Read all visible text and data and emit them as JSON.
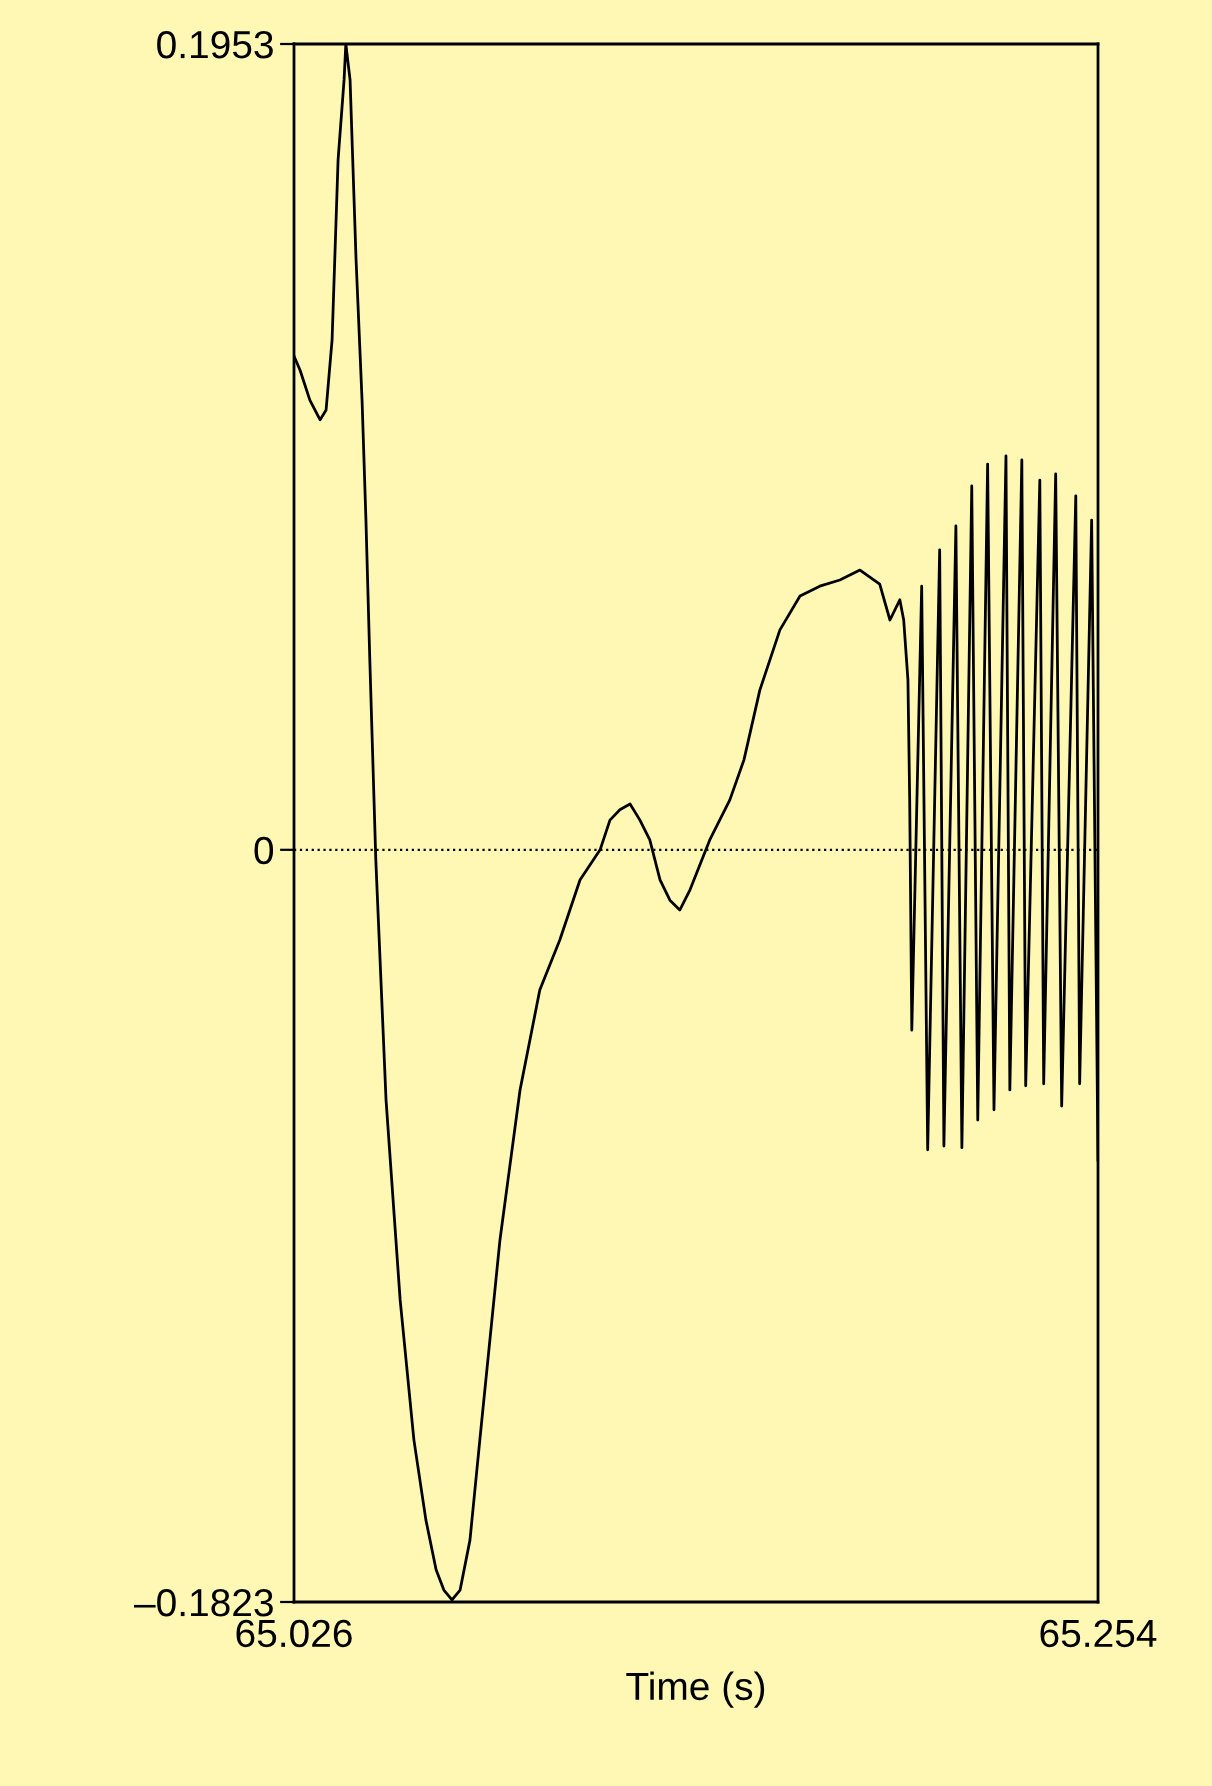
{
  "chart_data": {
    "type": "line",
    "xlabel": "Time (s)",
    "xlim": [
      65.026,
      65.254
    ],
    "ylim": [
      -0.1823,
      0.1953
    ],
    "xticks": [
      65.026,
      65.254
    ],
    "yticks": [
      {
        "value": -0.1823,
        "label": "–0.1823"
      },
      0,
      0.1953
    ],
    "grid": false,
    "legend": false,
    "marker": "none",
    "line_style": "solid",
    "ref_lines": [
      {
        "axis": "y",
        "value": 0,
        "line_style": "dotted",
        "color": "#000000"
      }
    ],
    "series": [
      {
        "color": "#000000",
        "x": [
          65.026,
          65.0277,
          65.0305,
          65.0334,
          65.0351,
          65.0368,
          65.0385,
          65.0402,
          65.0407,
          65.0419,
          65.0436,
          65.0453,
          65.0464,
          65.0475,
          65.0492,
          65.0521,
          65.0561,
          65.06,
          65.0634,
          65.0663,
          65.0685,
          65.0708,
          65.0731,
          65.0759,
          65.0787,
          65.0844,
          65.0901,
          65.0957,
          65.1014,
          65.1071,
          65.1128,
          65.1156,
          65.1184,
          65.1213,
          65.1241,
          65.1269,
          65.1298,
          65.1326,
          65.1354,
          65.1383,
          65.1439,
          65.1496,
          65.1536,
          65.1581,
          65.1638,
          65.1695,
          65.1751,
          65.1808,
          65.1865,
          65.1921,
          65.195,
          65.1978,
          65.1989,
          65.2001,
          65.2006,
          65.2012,
          65.204,
          65.2057,
          65.2091,
          65.2103,
          65.2137,
          65.2154,
          65.2182,
          65.2199,
          65.2227,
          65.2245,
          65.2279,
          65.229,
          65.2324,
          65.2335,
          65.2375,
          65.2386,
          65.242,
          65.2437,
          65.2477,
          65.2488,
          65.2522,
          65.254
        ],
        "values": [
          0.1197,
          0.1163,
          0.109,
          0.1042,
          0.1066,
          0.1236,
          0.1672,
          0.1866,
          0.1953,
          0.1866,
          0.143,
          0.109,
          0.0799,
          0.046,
          -0.0025,
          -0.0606,
          -0.1091,
          -0.143,
          -0.1624,
          -0.1745,
          -0.1794,
          -0.1818,
          -0.1794,
          -0.1673,
          -0.143,
          -0.0946,
          -0.0582,
          -0.034,
          -0.0218,
          -0.0073,
          0.0,
          0.0072,
          0.0097,
          0.0111,
          0.0072,
          0.0024,
          -0.0073,
          -0.0122,
          -0.0146,
          -0.0097,
          0.0024,
          0.0121,
          0.0218,
          0.0387,
          0.0533,
          0.0615,
          0.0639,
          0.0654,
          0.0678,
          0.0644,
          0.0557,
          0.0606,
          0.0557,
          0.0412,
          0.0121,
          -0.0437,
          0.0639,
          -0.0727,
          0.0727,
          -0.0718,
          0.0785,
          -0.0722,
          0.0882,
          -0.0655,
          0.0935,
          -0.063,
          0.0955,
          -0.0582,
          0.0945,
          -0.0572,
          0.0896,
          -0.0567,
          0.0911,
          -0.0621,
          0.0858,
          -0.0567,
          0.0799,
          -0.0752
        ]
      }
    ]
  }
}
